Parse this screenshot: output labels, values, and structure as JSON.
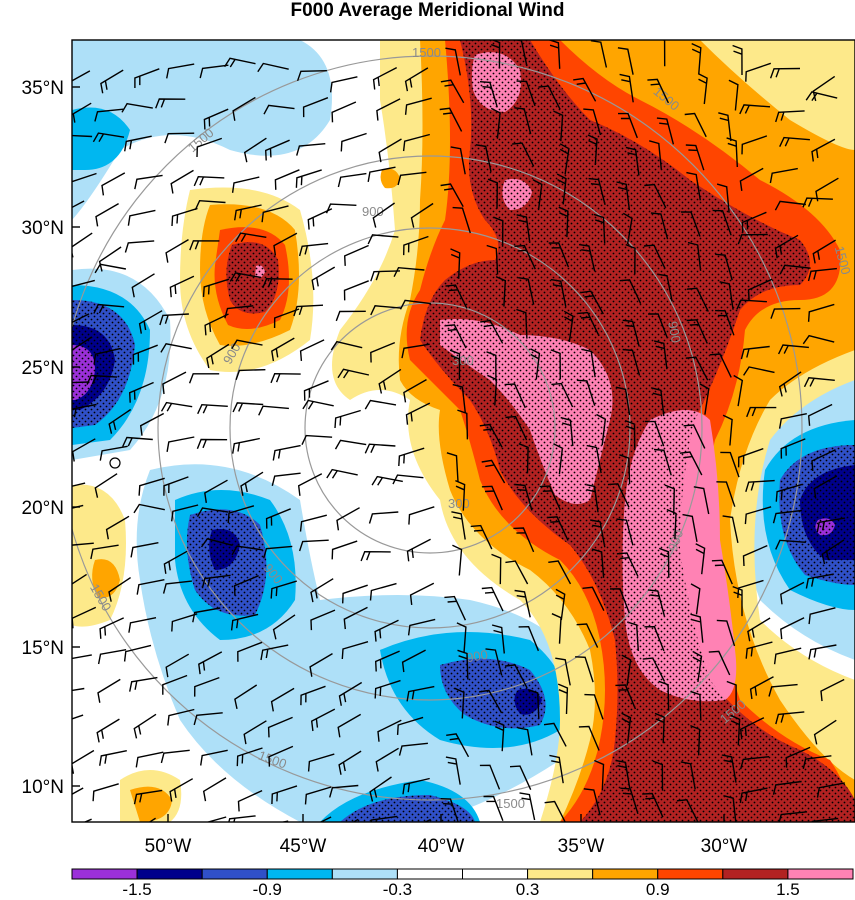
{
  "title": "F000 Average Meridional Wind",
  "lat_labels": [
    "35°N",
    "30°N",
    "25°N",
    "20°N",
    "15°N",
    "10°N"
  ],
  "lon_labels": [
    "50°W",
    "45°W",
    "40°W",
    "35°W",
    "30°W"
  ],
  "colorbar": {
    "colors": [
      "#9b30d9",
      "#00008b",
      "#3050c8",
      "#00b7f0",
      "#aee0f8",
      "#ffffff",
      "#ffffff",
      "#fde98a",
      "#ffa500",
      "#ff4500",
      "#b22222",
      "#ff82b4"
    ],
    "labels": [
      "-1.5",
      "-0.9",
      "-0.3",
      "0.3",
      "0.9",
      "1.5"
    ]
  },
  "range_rings": {
    "labels": [
      "300",
      "900",
      "1500"
    ],
    "color": "#999999"
  },
  "wind_barb_color": "#000000"
}
